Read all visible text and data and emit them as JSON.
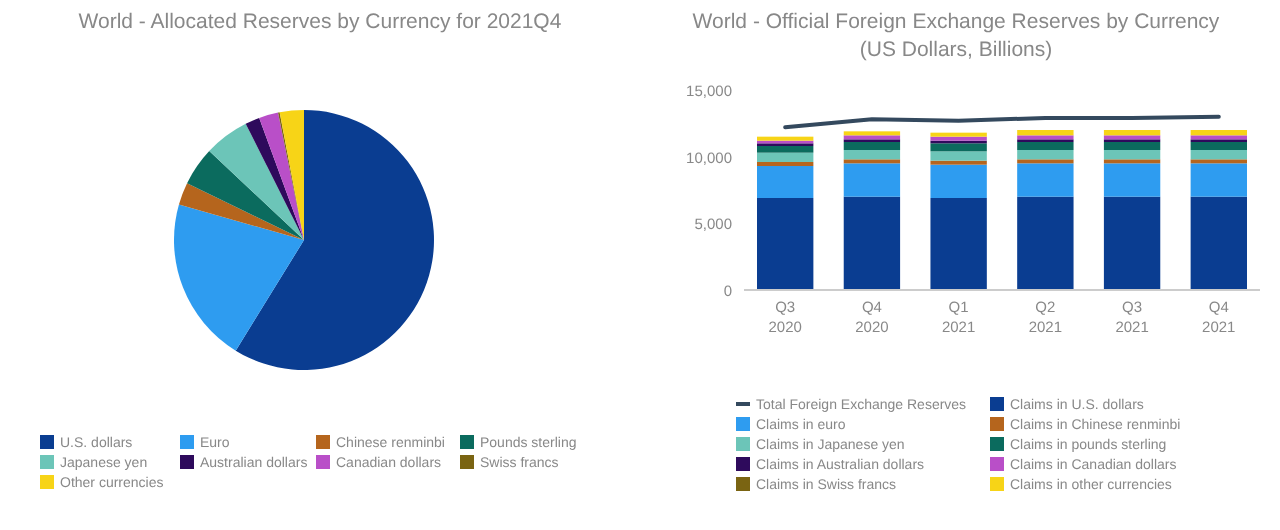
{
  "chart_data": [
    {
      "type": "pie",
      "title": "World - Allocated Reserves by Currency for 2021Q4",
      "categories": [
        "U.S. dollars",
        "Euro",
        "Chinese renminbi",
        "Pounds sterling",
        "Japanese yen",
        "Australian dollars",
        "Canadian dollars",
        "Swiss francs",
        "Other currencies"
      ],
      "values": [
        58.8,
        20.6,
        2.8,
        4.8,
        5.6,
        1.8,
        2.4,
        0.2,
        3.0
      ],
      "colors": [
        "#0a3d91",
        "#2e9cf0",
        "#b5651d",
        "#0b6b5e",
        "#6cc5b8",
        "#2e0a5c",
        "#b94fc8",
        "#7a6412",
        "#f7d417"
      ],
      "legend": "bottom"
    },
    {
      "type": "bar",
      "stacked": true,
      "title": "World - Official Foreign Exchange Reserves by Currency",
      "subtitle": "(US Dollars, Billions)",
      "categories": [
        "Q3 2020",
        "Q4 2020",
        "Q1 2021",
        "Q2 2021",
        "Q3 2021",
        "Q4 2021"
      ],
      "ylim": [
        0,
        15000
      ],
      "yticks": [
        {
          "value": 0,
          "label": "0"
        },
        {
          "value": 5000,
          "label": "5,000"
        },
        {
          "value": 10000,
          "label": "10,000"
        },
        {
          "value": 15000,
          "label": "15,000"
        }
      ],
      "grid": false,
      "legend": "bottom",
      "series": [
        {
          "name": "Total Foreign Exchange Reserves",
          "type": "line",
          "color": "#34495e",
          "values": [
            12200,
            12800,
            12700,
            12900,
            12900,
            13000
          ]
        },
        {
          "name": "Claims in U.S. dollars",
          "color": "#0a3d91",
          "values": [
            6900,
            7000,
            6900,
            7000,
            7000,
            7000
          ]
        },
        {
          "name": "Claims in euro",
          "color": "#2e9cf0",
          "values": [
            2400,
            2500,
            2500,
            2500,
            2500,
            2500
          ]
        },
        {
          "name": "Claims in Chinese renminbi",
          "color": "#b5651d",
          "values": [
            300,
            300,
            300,
            300,
            300,
            300
          ]
        },
        {
          "name": "Claims in Japanese yen",
          "color": "#6cc5b8",
          "values": [
            700,
            700,
            700,
            700,
            700,
            700
          ]
        },
        {
          "name": "Claims in pounds sterling",
          "color": "#0b6b5e",
          "values": [
            500,
            600,
            600,
            600,
            600,
            600
          ]
        },
        {
          "name": "Claims in Australian dollars",
          "color": "#2e0a5c",
          "values": [
            200,
            200,
            200,
            200,
            200,
            200
          ]
        },
        {
          "name": "Claims in Canadian dollars",
          "color": "#b94fc8",
          "values": [
            200,
            300,
            300,
            300,
            300,
            300
          ]
        },
        {
          "name": "Claims in Swiss francs",
          "color": "#7a6412",
          "values": [
            null,
            null,
            null,
            null,
            null,
            null
          ]
        },
        {
          "name": "Claims in other currencies",
          "color": "#f7d417",
          "values": [
            300,
            300,
            300,
            400,
            400,
            400
          ]
        }
      ]
    }
  ]
}
